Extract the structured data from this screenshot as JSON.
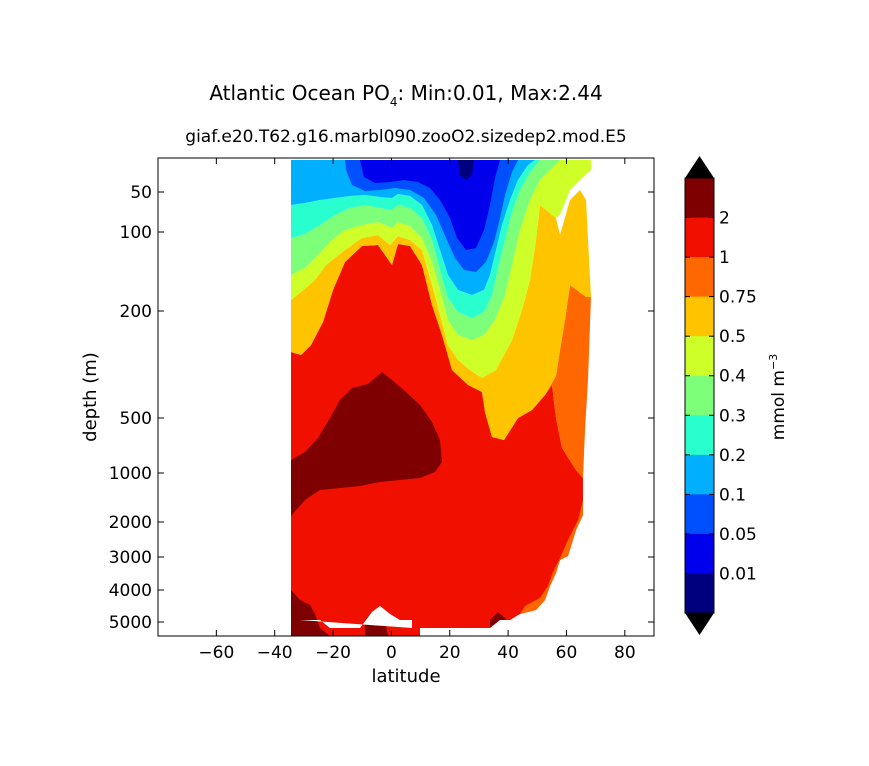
{
  "title_main": "Atlantic Ocean PO",
  "title_sub": "4",
  "title_rest": ": Min:0.01, Max:2.44",
  "subtitle": "giaf.e20.T62.g16.marbl090.zooO2.sizedep2.mod.E5",
  "chart_data": {
    "type": "heatmap",
    "title": "Atlantic Ocean PO4: Min:0.01, Max:2.44",
    "xlabel": "latitude",
    "ylabel": "depth (m)",
    "xlim": [
      -80,
      90
    ],
    "ylim": [
      5500,
      0
    ],
    "xticks": [
      "−60",
      "−40",
      "−20",
      "0",
      "20",
      "40",
      "60",
      "80"
    ],
    "xtick_values": [
      -60,
      -40,
      -20,
      0,
      20,
      40,
      60,
      80
    ],
    "yticks": [
      "50",
      "100",
      "200",
      "500",
      "1000",
      "2000",
      "3000",
      "4000",
      "5000"
    ],
    "ytick_values": [
      50,
      100,
      200,
      500,
      1000,
      2000,
      3000,
      4000,
      5000
    ],
    "colorbar": {
      "label": "mmol m",
      "label_exp": "−3",
      "levels": [
        "0.01",
        "0.05",
        "0.1",
        "0.2",
        "0.3",
        "0.4",
        "0.5",
        "0.75",
        "1",
        "2"
      ],
      "colors": [
        "#00007f",
        "#0000ec",
        "#0050ff",
        "#00b0ff",
        "#29ffce",
        "#7dff7a",
        "#ceff29",
        "#ffc400",
        "#ff6800",
        "#f11000",
        "#7f0000"
      ],
      "extend": "both"
    },
    "data_extent": {
      "lat_min": -34,
      "lat_max": 68
    },
    "min": 0.01,
    "max": 2.44
  }
}
